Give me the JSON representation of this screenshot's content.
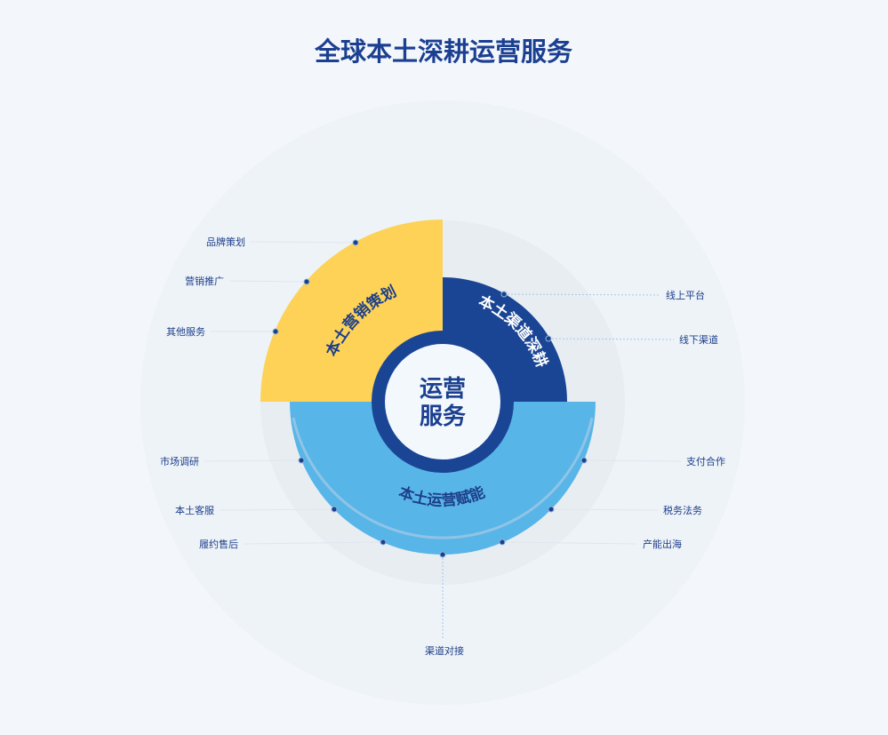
{
  "title": "全球本土深耕运营服务",
  "center": {
    "line1": "运营",
    "line2": "服务"
  },
  "colors": {
    "yellow": "#fdd257",
    "dark_blue": "#1a4595",
    "light_blue": "#58b5e8",
    "text": "#1d3f8a"
  },
  "segments": {
    "marketing": {
      "label": "本土营销策划",
      "items": [
        "品牌策划",
        "营销推广",
        "其他服务"
      ]
    },
    "channel": {
      "label": "本土渠道深耕",
      "items": [
        "线上平台",
        "线下渠道"
      ]
    },
    "operation": {
      "label": "本土运营赋能",
      "items": [
        "市场调研",
        "本土客服",
        "履约售后",
        "渠道对接",
        "产能出海",
        "税务法务",
        "支付合作"
      ]
    }
  }
}
